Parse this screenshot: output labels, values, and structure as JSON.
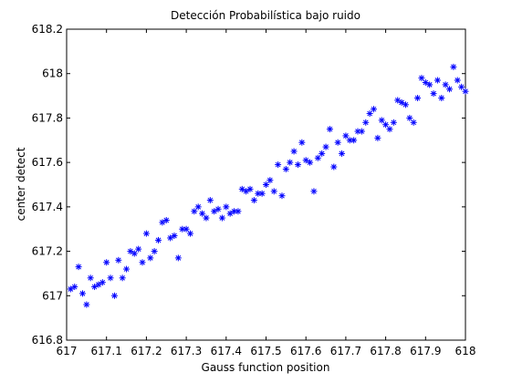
{
  "chart_data": {
    "type": "scatter",
    "title": "Detección Probabilística bajo ruido",
    "xlabel": "Gauss function position",
    "ylabel": "center detect",
    "xlim": [
      617,
      618
    ],
    "ylim": [
      616.8,
      618.2
    ],
    "x_ticks": [
      "617",
      "617.1",
      "617.2",
      "617.3",
      "617.4",
      "617.5",
      "617.6",
      "617.7",
      "617.8",
      "617.9",
      "618"
    ],
    "y_ticks": [
      "616.8",
      "617",
      "617.2",
      "617.4",
      "617.6",
      "617.8",
      "618",
      "618.2"
    ],
    "grid": false,
    "legend": "none",
    "marker": "asterisk",
    "marker_color": "#0000ff",
    "series": [
      {
        "x": [
          617.01,
          617.02,
          617.03,
          617.04,
          617.05,
          617.06,
          617.07,
          617.08,
          617.09,
          617.1,
          617.11,
          617.12,
          617.13,
          617.14,
          617.15,
          617.16,
          617.17,
          617.18,
          617.19,
          617.2,
          617.21,
          617.22,
          617.23,
          617.24,
          617.25,
          617.26,
          617.27,
          617.28,
          617.29,
          617.3,
          617.31,
          617.32,
          617.33,
          617.34,
          617.35,
          617.36,
          617.37,
          617.38,
          617.39,
          617.4,
          617.41,
          617.42,
          617.43,
          617.44,
          617.45,
          617.46,
          617.47,
          617.48,
          617.49,
          617.5,
          617.51,
          617.52,
          617.53,
          617.54,
          617.55,
          617.56,
          617.57,
          617.58,
          617.59,
          617.6,
          617.61,
          617.62,
          617.63,
          617.64,
          617.65,
          617.66,
          617.67,
          617.68,
          617.69,
          617.7,
          617.71,
          617.72,
          617.73,
          617.74,
          617.75,
          617.76,
          617.77,
          617.78,
          617.79,
          617.8,
          617.81,
          617.82,
          617.83,
          617.84,
          617.85,
          617.86,
          617.87,
          617.88,
          617.89,
          617.9,
          617.91,
          617.92,
          617.93,
          617.94,
          617.95,
          617.96,
          617.97,
          617.98,
          617.99,
          618.0
        ],
        "y": [
          617.03,
          617.04,
          617.13,
          617.01,
          616.96,
          617.08,
          617.04,
          617.05,
          617.06,
          617.15,
          617.08,
          617.0,
          617.16,
          617.08,
          617.12,
          617.2,
          617.19,
          617.21,
          617.15,
          617.28,
          617.17,
          617.2,
          617.25,
          617.33,
          617.34,
          617.26,
          617.27,
          617.17,
          617.3,
          617.3,
          617.28,
          617.38,
          617.4,
          617.37,
          617.35,
          617.43,
          617.38,
          617.39,
          617.35,
          617.4,
          617.37,
          617.38,
          617.38,
          617.48,
          617.47,
          617.48,
          617.43,
          617.46,
          617.46,
          617.5,
          617.52,
          617.47,
          617.59,
          617.45,
          617.57,
          617.6,
          617.65,
          617.59,
          617.69,
          617.61,
          617.6,
          617.47,
          617.62,
          617.64,
          617.67,
          617.75,
          617.58,
          617.69,
          617.64,
          617.72,
          617.7,
          617.7,
          617.74,
          617.74,
          617.78,
          617.82,
          617.84,
          617.71,
          617.79,
          617.77,
          617.75,
          617.78,
          617.88,
          617.87,
          617.86,
          617.8,
          617.78,
          617.89,
          617.98,
          617.96,
          617.95,
          617.91,
          617.97,
          617.89,
          617.95,
          617.93,
          618.03,
          617.97,
          617.94,
          617.92
        ]
      }
    ]
  }
}
